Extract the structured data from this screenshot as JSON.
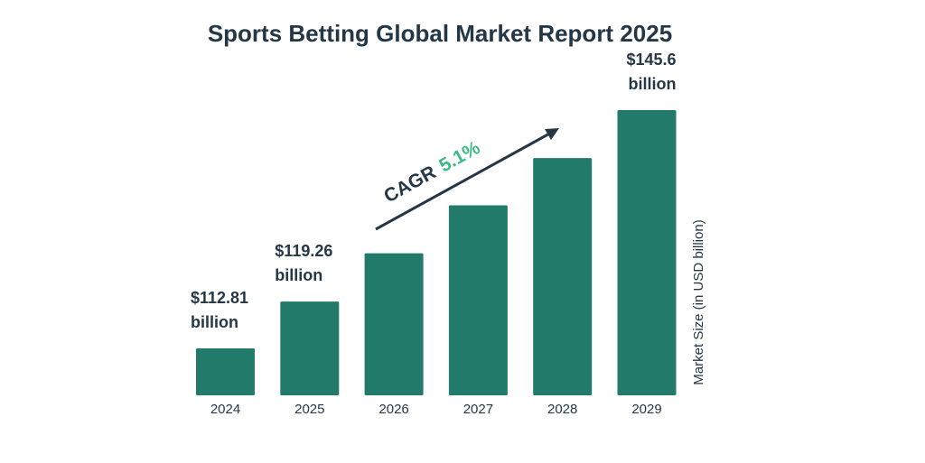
{
  "chart_data": {
    "type": "bar",
    "title": "Sports Betting Global Market Report 2025",
    "ylabel": "Market Size (in USD billion)",
    "xlabel": "",
    "categories": [
      "2024",
      "2025",
      "2026",
      "2027",
      "2028",
      "2029"
    ],
    "values": [
      112.81,
      119.26,
      125.9,
      132.5,
      139.0,
      145.6
    ],
    "data_labels": [
      {
        "category": "2024",
        "line1": "$112.81",
        "line2": "billion"
      },
      {
        "category": "2025",
        "line1": "$119.26",
        "line2": "billion"
      },
      {
        "category": "2029",
        "line1": "$145.6",
        "line2": "billion"
      }
    ],
    "annotation": {
      "prefix": "CAGR",
      "value": "5.1%"
    },
    "grid": false,
    "colors": {
      "bar": "#217a6a",
      "text": "#253746",
      "cagr": "#3dbb85"
    }
  }
}
